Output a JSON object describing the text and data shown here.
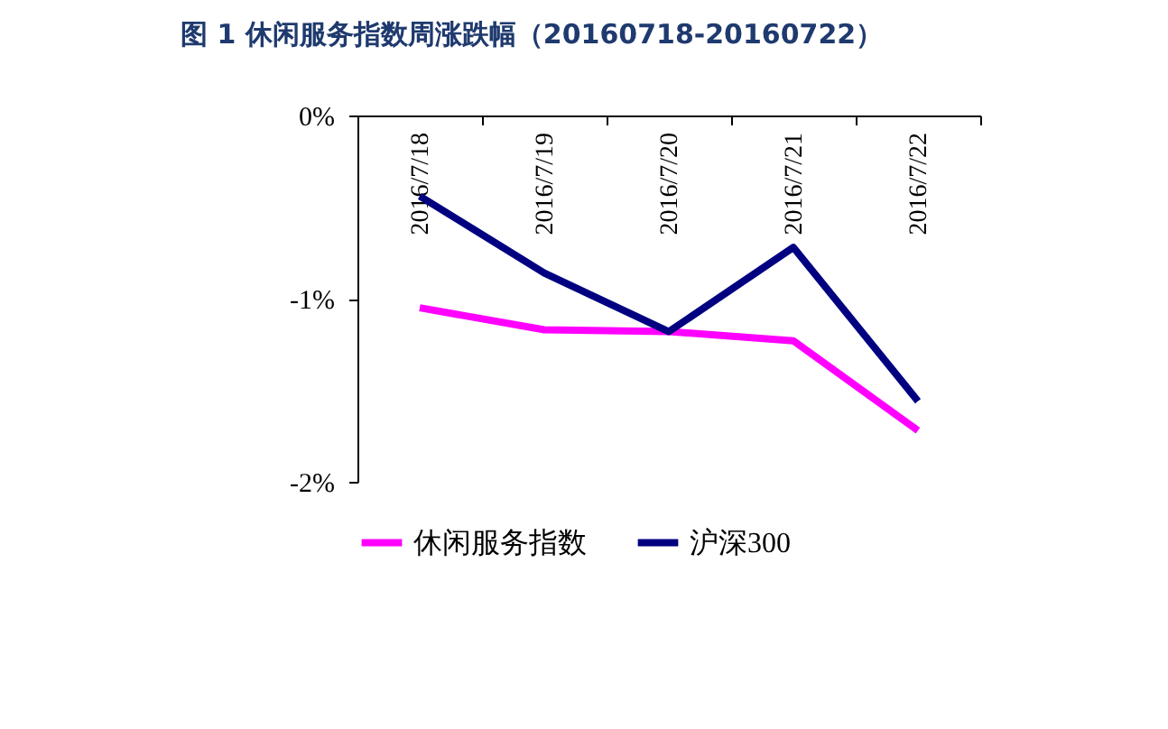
{
  "chart_data": {
    "type": "line",
    "title": "图 1 休闲服务指数周涨跌幅（20160718-20160722）",
    "categories": [
      "2016/7/18",
      "2016/7/19",
      "2016/7/20",
      "2016/7/21",
      "2016/7/22"
    ],
    "series": [
      {
        "name": "休闲服务指数",
        "color": "#ff00ff",
        "values": [
          -1.05,
          -1.17,
          -1.18,
          -1.23,
          -1.72
        ]
      },
      {
        "name": "沪深300",
        "color": "#000080",
        "values": [
          -0.44,
          -0.86,
          -1.18,
          -0.72,
          -1.56
        ]
      }
    ],
    "ylim": [
      -2,
      0
    ],
    "yticks": [
      {
        "value": 0,
        "label": "0%"
      },
      {
        "value": -1,
        "label": "-1%"
      },
      {
        "value": -2,
        "label": "-2%"
      }
    ],
    "grid": false,
    "legend": "bottom",
    "marker": "none",
    "line_style": "solid"
  }
}
